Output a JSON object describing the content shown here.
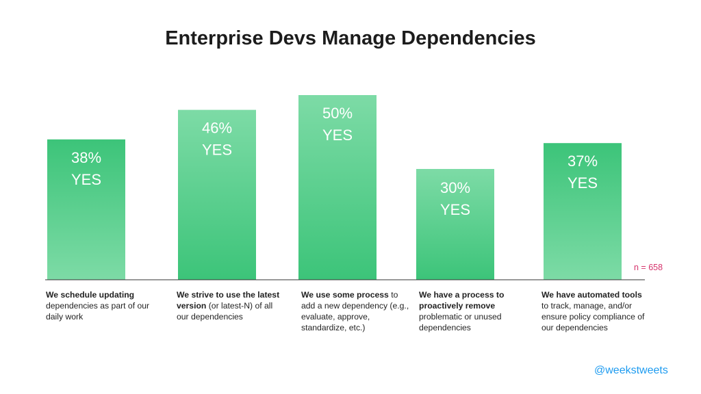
{
  "chart_data": {
    "type": "bar",
    "title": "Enterprise Devs Manage Dependencies",
    "categories": [
      "We schedule updating dependencies as part of our daily work",
      "We strive to use the latest version (or latest-N) of all our dependencies",
      "We use some process to add a new dependency (e.g., evaluate, approve, standardize, etc.)",
      "We have a process to proactively remove problematic or unused dependencies",
      "We have automated tools to track, manage, and/or ensure policy compliance of our dependencies"
    ],
    "values": [
      38,
      46,
      50,
      30,
      37
    ],
    "unit": "%",
    "labels": [
      {
        "pct": "38%",
        "yes": "YES"
      },
      {
        "pct": "46%",
        "yes": "YES"
      },
      {
        "pct": "50%",
        "yes": "YES"
      },
      {
        "pct": "30%",
        "yes": "YES"
      },
      {
        "pct": "37%",
        "yes": "YES"
      }
    ],
    "captions": [
      {
        "bold": "We schedule updating",
        "rest": "dependencies as part of our daily work"
      },
      {
        "bold": "We strive to use the latest version",
        "rest": "(or latest-N) of all our dependencies"
      },
      {
        "bold": "We use some process",
        "rest": "to add a new dependency (e.g., evaluate, approve, standardize, etc.)"
      },
      {
        "bold": "We have a process to proactively remove",
        "rest": "problematic or unused dependencies"
      },
      {
        "bold": "We have automated tools",
        "rest": "to track, manage, and/or ensure policy compliance of our dependencies"
      }
    ],
    "ylim": [
      0,
      50
    ],
    "grid": false,
    "n_label": "n = 658"
  },
  "colors": {
    "bar_light": "#7ddba6",
    "bar_dark": "#3cc479",
    "title": "#1c1c1c",
    "n_label": "#d6336c",
    "handle": "#1d9bf0"
  },
  "handle": "@weekstweets"
}
